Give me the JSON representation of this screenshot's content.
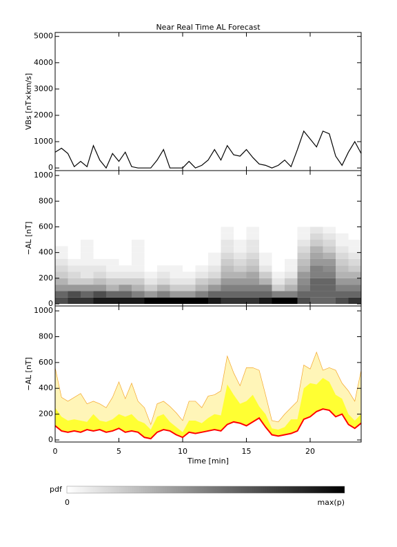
{
  "chart_data": [
    {
      "type": "line",
      "title": "Near Real Time AL Forecast",
      "ylabel": "VBs [nT×km/s]",
      "x": [
        0,
        0.5,
        1,
        1.5,
        2,
        2.5,
        3,
        3.5,
        4,
        4.5,
        5,
        5.5,
        6,
        6.5,
        7,
        7.5,
        8,
        8.5,
        9,
        9.5,
        10,
        10.5,
        11,
        11.5,
        12,
        12.5,
        13,
        13.5,
        14,
        14.5,
        15,
        15.5,
        16,
        16.5,
        17,
        17.5,
        18,
        18.5,
        19,
        19.5,
        20,
        20.5,
        21,
        21.5,
        22,
        22.5,
        23,
        23.5,
        24
      ],
      "values": [
        600,
        750,
        550,
        50,
        250,
        50,
        850,
        300,
        0,
        550,
        250,
        600,
        50,
        0,
        0,
        0,
        300,
        700,
        0,
        0,
        0,
        250,
        0,
        100,
        300,
        700,
        300,
        850,
        500,
        450,
        700,
        400,
        150,
        100,
        0,
        100,
        300,
        50,
        700,
        1400,
        1100,
        800,
        1400,
        1300,
        450,
        100,
        600,
        1000,
        550
      ],
      "color": "#000000",
      "xlim": [
        0,
        24
      ],
      "xticks": [
        0,
        5,
        10,
        15,
        20
      ],
      "ylim": [
        -100,
        5150
      ],
      "yticks": [
        0,
        1000,
        2000,
        3000,
        4000,
        5000
      ]
    },
    {
      "type": "heatmap",
      "ylabel": "−AL [nT]",
      "x_bins": [
        0,
        1,
        2,
        3,
        4,
        5,
        6,
        7,
        8,
        9,
        10,
        11,
        12,
        13,
        14,
        15,
        16,
        17,
        18,
        19,
        20,
        21,
        22,
        23,
        24
      ],
      "y_bins": [
        0,
        50,
        100,
        150,
        200,
        250,
        300,
        350,
        400,
        450,
        500,
        550,
        600
      ],
      "values": [
        [
          0.7,
          0.6,
          0.4,
          0.3,
          0.2,
          0.15,
          0.1,
          0.05,
          0.05,
          0,
          0,
          0
        ],
        [
          0.8,
          0.7,
          0.4,
          0.2,
          0.15,
          0.1,
          0.05,
          0,
          0,
          0,
          0,
          0
        ],
        [
          0.8,
          0.6,
          0.4,
          0.2,
          0.1,
          0.1,
          0.05,
          0.05,
          0.05,
          0.05,
          0,
          0
        ],
        [
          0.9,
          0.7,
          0.4,
          0.25,
          0.15,
          0.1,
          0.05,
          0,
          0,
          0,
          0,
          0
        ],
        [
          0.9,
          0.6,
          0.3,
          0.2,
          0.1,
          0.05,
          0.05,
          0,
          0,
          0,
          0,
          0
        ],
        [
          0.9,
          0.6,
          0.4,
          0.2,
          0.1,
          0.05,
          0,
          0,
          0,
          0,
          0,
          0
        ],
        [
          0.9,
          0.5,
          0.3,
          0.2,
          0.1,
          0.05,
          0.05,
          0.05,
          0.05,
          0.05,
          0,
          0
        ],
        [
          1,
          0.4,
          0.2,
          0.1,
          0.05,
          0,
          0,
          0,
          0,
          0,
          0,
          0
        ],
        [
          1,
          0.5,
          0.3,
          0.15,
          0.1,
          0.05,
          0,
          0,
          0,
          0,
          0,
          0
        ],
        [
          1,
          0.4,
          0.2,
          0.1,
          0.05,
          0.05,
          0,
          0,
          0,
          0,
          0,
          0
        ],
        [
          1,
          0.4,
          0.2,
          0.1,
          0.05,
          0,
          0,
          0,
          0,
          0,
          0,
          0
        ],
        [
          1,
          0.5,
          0.3,
          0.2,
          0.1,
          0.05,
          0,
          0,
          0,
          0,
          0,
          0
        ],
        [
          0.9,
          0.6,
          0.4,
          0.25,
          0.15,
          0.1,
          0.05,
          0.05,
          0,
          0,
          0,
          0
        ],
        [
          0.8,
          0.6,
          0.5,
          0.4,
          0.3,
          0.25,
          0.2,
          0.15,
          0.1,
          0.1,
          0.05,
          0.05
        ],
        [
          0.8,
          0.6,
          0.5,
          0.4,
          0.3,
          0.2,
          0.15,
          0.1,
          0.05,
          0.05,
          0,
          0
        ],
        [
          0.8,
          0.6,
          0.5,
          0.4,
          0.35,
          0.25,
          0.2,
          0.15,
          0.1,
          0.1,
          0.05,
          0.05
        ],
        [
          0.9,
          0.6,
          0.5,
          0.3,
          0.2,
          0.1,
          0.05,
          0.05,
          0,
          0,
          0,
          0
        ],
        [
          1,
          0.5,
          0.2,
          0.1,
          0.05,
          0,
          0,
          0,
          0,
          0,
          0,
          0
        ],
        [
          1,
          0.5,
          0.3,
          0.2,
          0.1,
          0.05,
          0.05,
          0,
          0,
          0,
          0,
          0
        ],
        [
          0.7,
          0.6,
          0.5,
          0.45,
          0.4,
          0.3,
          0.25,
          0.2,
          0.15,
          0.1,
          0.05,
          0.05
        ],
        [
          0.6,
          0.6,
          0.6,
          0.6,
          0.5,
          0.5,
          0.4,
          0.35,
          0.3,
          0.2,
          0.15,
          0.1
        ],
        [
          0.6,
          0.6,
          0.6,
          0.6,
          0.5,
          0.45,
          0.4,
          0.3,
          0.2,
          0.15,
          0.1,
          0.05
        ],
        [
          0.7,
          0.6,
          0.5,
          0.4,
          0.3,
          0.25,
          0.2,
          0.15,
          0.1,
          0.05,
          0.05,
          0
        ],
        [
          0.8,
          0.6,
          0.5,
          0.4,
          0.3,
          0.2,
          0.15,
          0.1,
          0.05,
          0.05,
          0,
          0
        ]
      ],
      "xlim": [
        0,
        24
      ],
      "xticks": [
        0,
        5,
        10,
        15,
        20
      ],
      "ylim": [
        -16,
        1038
      ],
      "yticks": [
        0,
        200,
        400,
        600,
        800,
        1000
      ]
    },
    {
      "type": "band",
      "ylabel": "−AL [nT]",
      "xlabel": "Time [min]",
      "x": [
        0,
        0.5,
        1,
        1.5,
        2,
        2.5,
        3,
        3.5,
        4,
        4.5,
        5,
        5.5,
        6,
        6.5,
        7,
        7.5,
        8,
        8.5,
        9,
        9.5,
        10,
        10.5,
        11,
        11.5,
        12,
        12.5,
        13,
        13.5,
        14,
        14.5,
        15,
        15.5,
        16,
        16.5,
        17,
        17.5,
        18,
        18.5,
        19,
        19.5,
        20,
        20.5,
        21,
        21.5,
        22,
        22.5,
        23,
        23.5,
        24
      ],
      "series": [
        {
          "color": "#fff5b8",
          "line_color": "#f4a428",
          "values": [
            560,
            330,
            300,
            330,
            360,
            280,
            300,
            280,
            250,
            330,
            450,
            320,
            440,
            300,
            250,
            120,
            280,
            300,
            260,
            210,
            150,
            300,
            300,
            250,
            340,
            350,
            380,
            650,
            520,
            420,
            560,
            560,
            540,
            350,
            150,
            140,
            200,
            250,
            300,
            580,
            550,
            680,
            540,
            560,
            540,
            440,
            380,
            300,
            540
          ]
        },
        {
          "color": "#ffff33",
          "values": [
            250,
            180,
            150,
            160,
            150,
            140,
            200,
            150,
            140,
            160,
            200,
            180,
            200,
            150,
            130,
            80,
            180,
            200,
            140,
            100,
            60,
            150,
            150,
            130,
            170,
            200,
            190,
            430,
            350,
            280,
            300,
            350,
            260,
            200,
            90,
            80,
            100,
            160,
            160,
            400,
            440,
            430,
            480,
            450,
            350,
            320,
            200,
            150,
            200
          ]
        },
        {
          "color": "#ff0000",
          "values": [
            110,
            70,
            60,
            70,
            60,
            80,
            70,
            80,
            60,
            70,
            90,
            60,
            70,
            60,
            20,
            10,
            60,
            80,
            70,
            40,
            20,
            60,
            50,
            60,
            70,
            80,
            70,
            120,
            140,
            130,
            110,
            140,
            170,
            100,
            40,
            30,
            40,
            50,
            70,
            160,
            180,
            220,
            240,
            230,
            180,
            200,
            120,
            90,
            130
          ]
        }
      ],
      "xlim": [
        0,
        24
      ],
      "xticks": [
        0,
        5,
        10,
        15,
        20
      ],
      "ylim": [
        -16,
        1038
      ],
      "yticks": [
        0,
        200,
        400,
        600,
        800,
        1000
      ]
    }
  ],
  "colorbar": {
    "label": "pdf",
    "min_label": "0",
    "max_label": "max(p)"
  }
}
